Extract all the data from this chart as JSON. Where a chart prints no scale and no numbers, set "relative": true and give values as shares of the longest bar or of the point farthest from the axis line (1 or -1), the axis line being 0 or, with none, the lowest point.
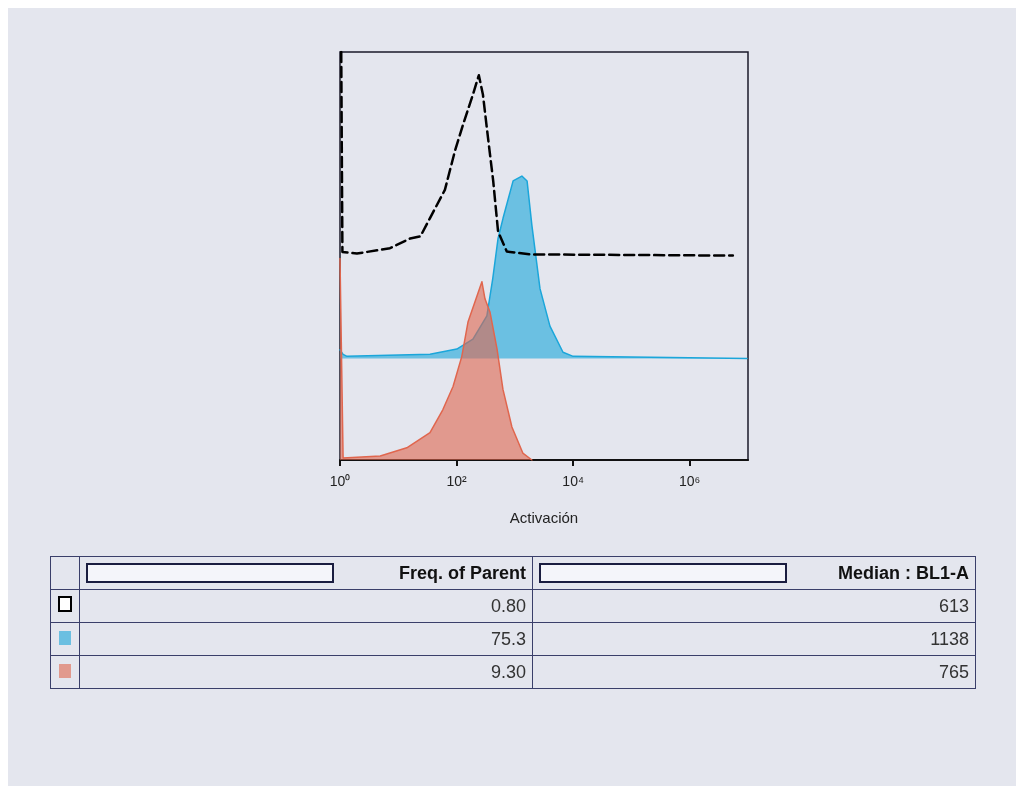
{
  "chart_data": {
    "type": "area",
    "relative": true,
    "xlabel": "Activación",
    "log": "x",
    "grid": false,
    "xlim": [
      1,
      10000000
    ],
    "xticks": [
      {
        "value": 1,
        "label": "10⁰"
      },
      {
        "value": 100,
        "label": "10²"
      },
      {
        "value": 10000,
        "label": "10⁴"
      },
      {
        "value": 1000000,
        "label": "10⁶"
      }
    ],
    "series": [
      {
        "type": "line",
        "line_style": "dashed",
        "color": "#000000",
        "x": [
          1.05,
          1.1,
          1.95,
          7.2,
          16,
          24,
          35,
          63,
          94,
          129,
          191,
          241,
          283,
          346,
          425,
          515,
          727,
          1800,
          5500000
        ],
        "values": [
          1.0,
          0.51,
          0.506,
          0.519,
          0.543,
          0.548,
          0.593,
          0.662,
          0.758,
          0.822,
          0.896,
          0.943,
          0.896,
          0.79,
          0.684,
          0.56,
          0.511,
          0.504,
          0.501
        ]
      },
      {
        "color": "#1ba6da",
        "x": [
          1.0,
          1.13,
          1.32,
          35,
          101,
          191,
          331,
          417,
          515,
          628,
          933,
          1320,
          1620,
          1960,
          2700,
          4000,
          6700,
          10000,
          9600000
        ],
        "values": [
          0.27,
          0.259,
          0.254,
          0.259,
          0.272,
          0.296,
          0.353,
          0.444,
          0.543,
          0.593,
          0.684,
          0.696,
          0.684,
          0.575,
          0.42,
          0.328,
          0.264,
          0.254,
          0.249
        ]
      },
      {
        "color": "#e0664e",
        "x": [
          1.0,
          1.13,
          4.9,
          14,
          35,
          58,
          87,
          123,
          157,
          224,
          272,
          307,
          374,
          495,
          625,
          890,
          1370,
          1960
        ],
        "values": [
          0.494,
          0.005,
          0.01,
          0.03,
          0.067,
          0.123,
          0.18,
          0.254,
          0.338,
          0.402,
          0.437,
          0.395,
          0.363,
          0.272,
          0.173,
          0.081,
          0.017,
          0.0
        ]
      }
    ],
    "annotations": [
      "Freq. of Parent",
      "Median : BL1-A",
      "0.80",
      "613",
      "75.3",
      "1138",
      "9.30",
      "765"
    ]
  }
}
